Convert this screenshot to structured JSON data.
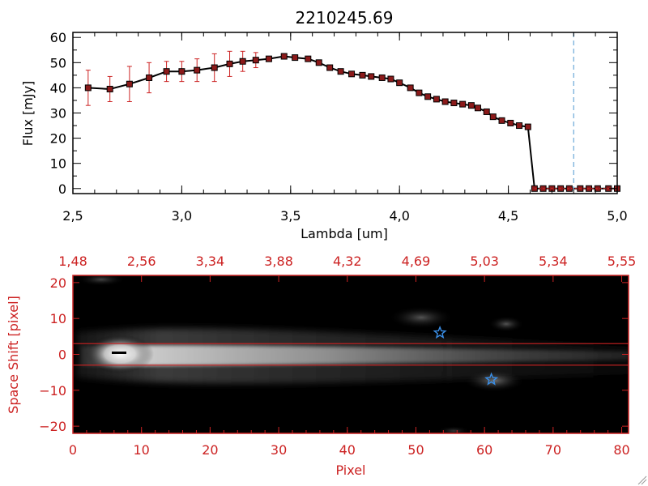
{
  "chart_data": [
    {
      "type": "line",
      "title": "2210245.69",
      "xlabel": "Lambda [um]",
      "ylabel": "Flux [mJy]",
      "xlim": [
        2.5,
        5.0
      ],
      "ylim": [
        -2,
        62
      ],
      "x_ticks": [
        "2.5",
        "3.0",
        "3.5",
        "4.0",
        "4.5",
        "5.0"
      ],
      "y_ticks": [
        "0",
        "10",
        "20",
        "30",
        "40",
        "50",
        "60"
      ],
      "line_color": "#000000",
      "marker_color": "#8b1a1a",
      "errorbar_color": "#cc2222",
      "cutoff_line": {
        "x": 4.8,
        "style": "dashed",
        "color": "#6aa8d8"
      },
      "series": [
        {
          "x": [
            2.57,
            2.67,
            2.76,
            2.85,
            2.93,
            3.0,
            3.07,
            3.15,
            3.22,
            3.28,
            3.34,
            3.4,
            3.47,
            3.52,
            3.58,
            3.63,
            3.68,
            3.73,
            3.78,
            3.83,
            3.87,
            3.92,
            3.96,
            4.0,
            4.05,
            4.09,
            4.13,
            4.17,
            4.21,
            4.25,
            4.29,
            4.33,
            4.36,
            4.4,
            4.43,
            4.47,
            4.51,
            4.55,
            4.59,
            4.62,
            4.66,
            4.7,
            4.74,
            4.78,
            4.83,
            4.87,
            4.91,
            4.96,
            5.0
          ],
          "y": [
            40,
            39.5,
            41.5,
            44,
            46.5,
            46.5,
            47,
            48,
            49.5,
            50.5,
            51,
            51.5,
            52.5,
            52,
            51.5,
            50,
            48,
            46.5,
            45.5,
            45,
            44.5,
            44,
            43.5,
            42,
            40,
            38,
            36.5,
            35.5,
            34.5,
            34,
            33.5,
            33,
            32,
            30.5,
            28.5,
            27,
            26,
            25,
            24.5,
            0,
            0,
            0,
            0,
            0,
            0,
            0,
            0,
            0,
            0
          ],
          "err": [
            7,
            5,
            7,
            6,
            4,
            4,
            4.5,
            5.5,
            5,
            4,
            3,
            0,
            0,
            0,
            0,
            0,
            0,
            0,
            0,
            0,
            0,
            0,
            0,
            0,
            0,
            0,
            0,
            0,
            0,
            0,
            0,
            0,
            0,
            0,
            0,
            0,
            0,
            0,
            0,
            0,
            0,
            0,
            0,
            0,
            0,
            0,
            0,
            0,
            0
          ]
        }
      ]
    },
    {
      "type": "heatmap",
      "xlabel": "Pixel",
      "ylabel": "Space Shift [pixel]",
      "xlim": [
        0,
        81
      ],
      "ylim": [
        -22,
        22
      ],
      "x_ticks": [
        "0",
        "10",
        "20",
        "30",
        "40",
        "50",
        "60",
        "70",
        "80"
      ],
      "y_ticks": [
        "-20",
        "-10",
        "0",
        "10",
        "20"
      ],
      "top_axis_labels": [
        "1.48",
        "2.56",
        "3.34",
        "3.88",
        "4.32",
        "4.69",
        "5.03",
        "5.34",
        "5.55"
      ],
      "axis_color": "#cc2222",
      "colormap": "grayscale",
      "extraction_box": {
        "y_min": -3,
        "y_max": 3,
        "color": "#cc2222"
      },
      "sources": [
        {
          "name": "star-1",
          "x": 53.5,
          "y": 6,
          "color": "#3a8ee6"
        },
        {
          "name": "star-2",
          "x": 61,
          "y": -7,
          "color": "#3a8ee6"
        }
      ]
    }
  ]
}
